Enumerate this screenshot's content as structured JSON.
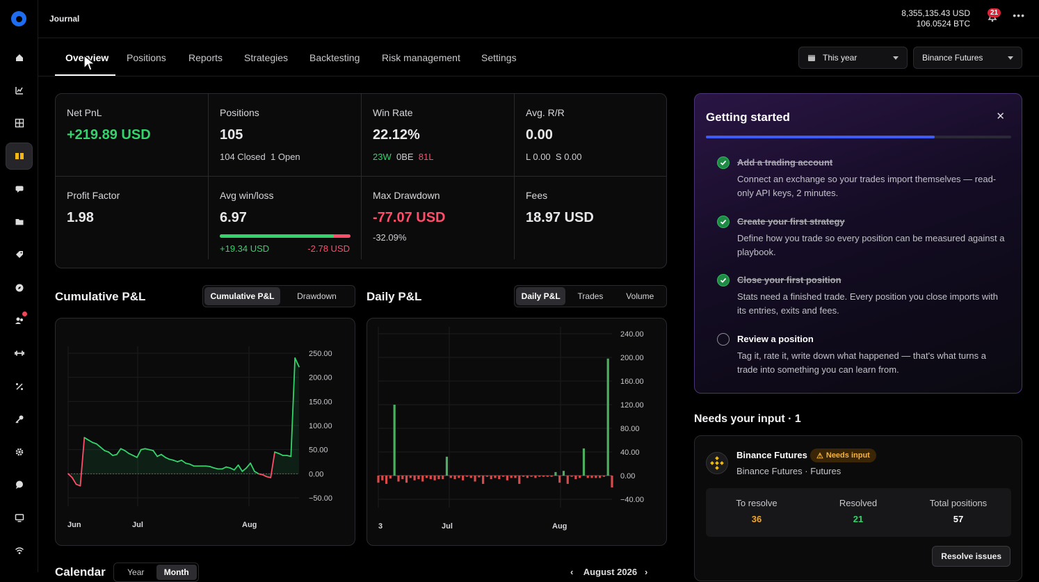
{
  "app": {
    "title": "Journal"
  },
  "balance": {
    "usd": "8,355,135.43 USD",
    "btc": "106.0524 BTC"
  },
  "notifications": {
    "count": "21"
  },
  "sidebar": {
    "items": [
      {
        "icon": "home-icon"
      },
      {
        "icon": "analytics-icon"
      },
      {
        "icon": "grid-icon"
      },
      {
        "icon": "journal-icon",
        "active": true
      },
      {
        "icon": "chat-icon"
      },
      {
        "icon": "folder-icon"
      },
      {
        "icon": "tag-icon"
      },
      {
        "icon": "compass-icon"
      },
      {
        "icon": "community-icon",
        "dot": true
      },
      {
        "icon": "dumbbell-icon"
      },
      {
        "icon": "percent-icon"
      },
      {
        "icon": "key-icon"
      },
      {
        "icon": "gear-icon"
      },
      {
        "icon": "support-icon"
      },
      {
        "icon": "monitor-icon"
      },
      {
        "icon": "wifi-icon"
      }
    ]
  },
  "tabs": [
    "Overview",
    "Positions",
    "Reports",
    "Strategies",
    "Backtesting",
    "Risk management",
    "Settings"
  ],
  "filters": {
    "period": "This year",
    "exchange": "Binance Futures"
  },
  "stats": {
    "net_pnl": {
      "label": "Net PnL",
      "value": "+219.89 USD"
    },
    "positions": {
      "label": "Positions",
      "value": "105",
      "closed": "104 Closed",
      "open": "1 Open"
    },
    "win_rate": {
      "label": "Win Rate",
      "value": "22.12%",
      "wins": "23W",
      "be": "0BE",
      "losses": "81L"
    },
    "avg_rr": {
      "label": "Avg. R/R",
      "value": "0.00",
      "long": "L 0.00",
      "short": "S 0.00"
    },
    "profit_factor": {
      "label": "Profit Factor",
      "value": "1.98"
    },
    "avg_win_loss": {
      "label": "Avg win/loss",
      "value": "6.97",
      "win": "+19.34 USD",
      "loss": "-2.78 USD",
      "win_share": 0.87
    },
    "max_drawdown": {
      "label": "Max Drawdown",
      "value": "-77.07 USD",
      "pct": "-32.09%"
    },
    "fees": {
      "label": "Fees",
      "value": "18.97 USD"
    }
  },
  "cumulative": {
    "title": "Cumulative P&L",
    "toggle": [
      "Cumulative P&L",
      "Drawdown"
    ]
  },
  "daily": {
    "title": "Daily P&L",
    "toggle": [
      "Daily P&L",
      "Trades",
      "Volume"
    ]
  },
  "chart_data": [
    {
      "type": "area",
      "title": "Cumulative P&L",
      "x_labels": [
        "Jun",
        "Jul",
        "Aug"
      ],
      "y_ticks": [
        "250.00",
        "200.00",
        "150.00",
        "100.00",
        "50.00",
        "0.00",
        "−50.00"
      ],
      "ylim": [
        -50,
        250
      ],
      "values": [
        0,
        -8,
        -22,
        -25,
        75,
        70,
        65,
        62,
        55,
        48,
        45,
        38,
        40,
        52,
        48,
        42,
        38,
        34,
        50,
        52,
        50,
        48,
        36,
        40,
        34,
        30,
        28,
        25,
        28,
        22,
        20,
        16,
        16,
        16,
        16,
        15,
        12,
        10,
        10,
        14,
        12,
        8,
        18,
        5,
        12,
        22,
        5,
        0,
        -2,
        -6,
        -8,
        45,
        42,
        38,
        38,
        36,
        240,
        222
      ],
      "grid": true
    },
    {
      "type": "bar",
      "title": "Daily P&L",
      "x_labels": [
        "3",
        "Jul",
        "Aug"
      ],
      "y_ticks": [
        "240.00",
        "200.00",
        "160.00",
        "120.00",
        "80.00",
        "40.00",
        "0.00",
        "−40.00"
      ],
      "ylim": [
        -40,
        240
      ],
      "values": [
        -12,
        -8,
        -14,
        -5,
        120,
        -10,
        -6,
        -12,
        -4,
        -8,
        -6,
        -10,
        -4,
        -6,
        -8,
        -6,
        -6,
        32,
        -4,
        -6,
        -4,
        -8,
        -2,
        -4,
        -10,
        -3,
        -14,
        -2,
        -6,
        -4,
        -6,
        -2,
        -8,
        -4,
        -4,
        -14,
        -2,
        -4,
        -2,
        -4,
        -2,
        -2,
        -2,
        -2,
        6,
        -12,
        8,
        -14,
        -2,
        -6,
        -4,
        46,
        -4,
        -4,
        -4,
        -4,
        -2,
        198,
        -20
      ],
      "grid": true
    }
  ],
  "getting_started": {
    "title": "Getting started",
    "progress": 0.75,
    "steps": [
      {
        "title": "Add a trading account",
        "desc": "Connect an exchange so your trades import themselves — read-only API keys, 2 minutes.",
        "done": true
      },
      {
        "title": "Create your first strategy",
        "desc": "Define how you trade so every position can be measured against a playbook.",
        "done": true
      },
      {
        "title": "Close your first position",
        "desc": "Stats need a finished trade. Every position you close imports with its entries, exits and fees.",
        "done": true
      },
      {
        "title": "Review a position",
        "desc": "Tag it, rate it, write down what happened — that's what turns a trade into something you can learn from.",
        "done": false
      }
    ]
  },
  "needs_input": {
    "title": "Needs your input · 1",
    "account": {
      "name": "Binance Futures",
      "badge": "Needs input",
      "sub": "Binance Futures · Futures"
    },
    "stats": [
      {
        "label": "To resolve",
        "value": "36",
        "color": "#f6a623"
      },
      {
        "label": "Resolved",
        "value": "21",
        "color": "#34d36b"
      },
      {
        "label": "Total positions",
        "value": "57",
        "color": "#ffffff"
      }
    ],
    "button": "Resolve issues"
  },
  "calendar": {
    "title": "Calendar",
    "toggle": [
      "Year",
      "Month"
    ],
    "month": "August 2026"
  }
}
